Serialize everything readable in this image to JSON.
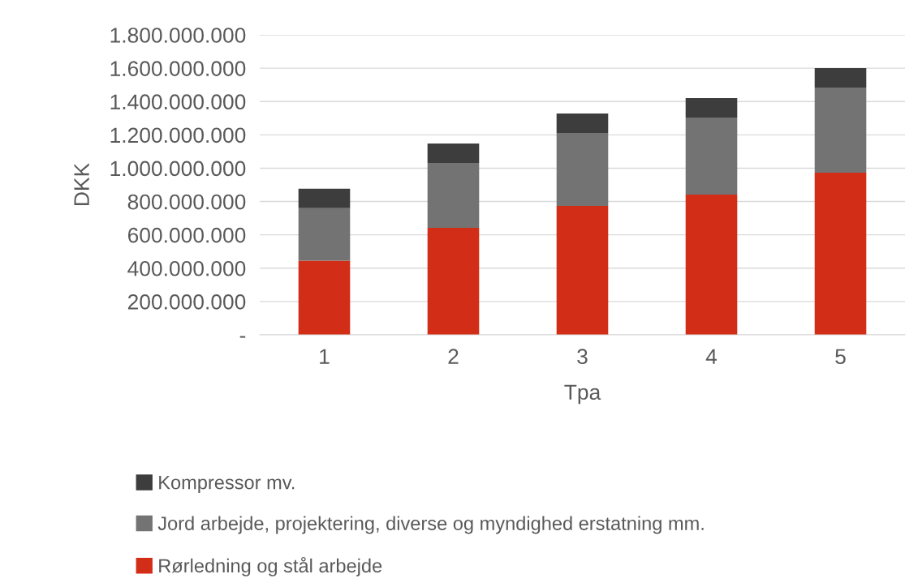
{
  "chart_data": {
    "type": "bar",
    "stacked": true,
    "xlabel": "Tpa",
    "ylabel": "DKK",
    "categories": [
      "1",
      "2",
      "3",
      "4",
      "5"
    ],
    "series": [
      {
        "name": "Rørledning og stål arbejde",
        "color": "#d22e17",
        "values": [
          445000000,
          642000000,
          774000000,
          842000000,
          973000000
        ]
      },
      {
        "name": "Jord arbejde, projektering, diverse og myndighed erstatning mm.",
        "color": "#737373",
        "values": [
          315000000,
          389000000,
          437000000,
          462000000,
          511000000
        ]
      },
      {
        "name": "Kompressor mv.",
        "color": "#3d3d3d",
        "values": [
          117000000,
          117000000,
          117000000,
          117000000,
          117000000
        ]
      }
    ],
    "ylim": [
      0,
      1800000000
    ],
    "yticks": [
      {
        "value": 0,
        "label": "-"
      },
      {
        "value": 200000000,
        "label": "200.000.000"
      },
      {
        "value": 400000000,
        "label": "400.000.000"
      },
      {
        "value": 600000000,
        "label": "600.000.000"
      },
      {
        "value": 800000000,
        "label": "800.000.000"
      },
      {
        "value": 1000000000,
        "label": "1.000.000.000"
      },
      {
        "value": 1200000000,
        "label": "1.200.000.000"
      },
      {
        "value": 1400000000,
        "label": "1.400.000.000"
      },
      {
        "value": 1600000000,
        "label": "1.600.000.000"
      },
      {
        "value": 1800000000,
        "label": "1.800.000.000"
      }
    ],
    "grid": "y",
    "legend": "bottom"
  }
}
